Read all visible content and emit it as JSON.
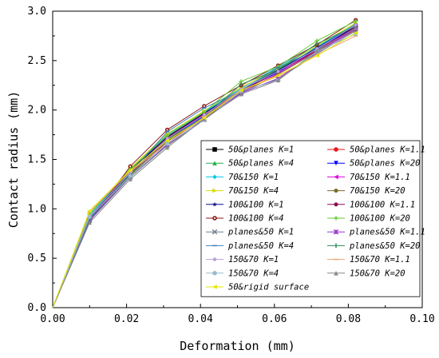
{
  "chart_data": {
    "type": "line",
    "xlabel": "Deformation (mm)",
    "ylabel": "Contact radius (mm)",
    "xlim": [
      0,
      0.1
    ],
    "ylim": [
      0,
      3.0
    ],
    "xticks": [
      "0.00",
      "0.02",
      "0.04",
      "0.06",
      "0.08",
      "0.10"
    ],
    "yticks": [
      "0.0",
      "0.5",
      "1.0",
      "1.5",
      "2.0",
      "2.5",
      "3.0"
    ],
    "grid": false,
    "legend_position": "bottom-right",
    "x": [
      0,
      0.01,
      0.021,
      0.031,
      0.041,
      0.051,
      0.061,
      0.0715,
      0.082
    ],
    "series": [
      {
        "name": "50&planes K=1",
        "color": "#000000",
        "marker": "square",
        "values": [
          0,
          0.92,
          1.38,
          1.72,
          1.96,
          2.2,
          2.4,
          2.62,
          2.85
        ]
      },
      {
        "name": "50&planes K=1.1",
        "color": "#e8161b",
        "marker": "circle",
        "values": [
          0,
          0.9,
          1.36,
          1.7,
          1.95,
          2.19,
          2.39,
          2.61,
          2.83
        ]
      },
      {
        "name": "50&planes K=4",
        "color": "#22b14c",
        "marker": "triangle-up",
        "values": [
          0,
          0.93,
          1.39,
          1.73,
          1.97,
          2.21,
          2.41,
          2.63,
          2.86
        ]
      },
      {
        "name": "50&planes K=20",
        "color": "#0000ff",
        "marker": "triangle-down",
        "values": [
          0,
          0.91,
          1.37,
          1.71,
          1.94,
          2.2,
          2.38,
          2.62,
          2.84
        ]
      },
      {
        "name": "70&150 K=1",
        "color": "#00c8e8",
        "marker": "diamond",
        "values": [
          0,
          0.94,
          1.4,
          1.75,
          1.98,
          2.22,
          2.44,
          2.64,
          2.87
        ]
      },
      {
        "name": "70&150 K=1.1",
        "color": "#e000e0",
        "marker": "triangle-left",
        "values": [
          0,
          0.9,
          1.35,
          1.69,
          1.93,
          2.18,
          2.37,
          2.6,
          2.82
        ]
      },
      {
        "name": "70&150 K=4",
        "color": "#d9d900",
        "marker": "triangle-right",
        "values": [
          0,
          0.95,
          1.41,
          1.76,
          1.99,
          2.23,
          2.42,
          2.65,
          2.88
        ]
      },
      {
        "name": "70&150 K=20",
        "color": "#7b6a2a",
        "marker": "hexagon",
        "values": [
          0,
          0.89,
          1.34,
          1.68,
          1.92,
          2.17,
          2.36,
          2.59,
          2.81
        ]
      },
      {
        "name": "100&100 K=1",
        "color": "#0a0a8a",
        "marker": "star",
        "values": [
          0,
          0.92,
          1.39,
          1.73,
          1.97,
          2.2,
          2.4,
          2.63,
          2.86
        ]
      },
      {
        "name": "100&100 K=1.1",
        "color": "#8b0a50",
        "marker": "pentagon",
        "values": [
          0,
          0.9,
          1.37,
          1.72,
          1.96,
          2.19,
          2.39,
          2.6,
          2.84
        ]
      },
      {
        "name": "100&100 K=4",
        "color": "#8b1a1a",
        "marker": "circle-dot",
        "values": [
          0,
          0.87,
          1.43,
          1.8,
          2.04,
          2.25,
          2.45,
          2.66,
          2.91
        ]
      },
      {
        "name": "100&100 K=20",
        "color": "#66cc33",
        "marker": "plus",
        "values": [
          0,
          0.95,
          1.4,
          1.74,
          1.98,
          2.29,
          2.44,
          2.7,
          2.9
        ]
      },
      {
        "name": "planes&50 K=1",
        "color": "#708090",
        "marker": "x",
        "values": [
          0,
          0.88,
          1.32,
          1.64,
          1.9,
          2.18,
          2.31,
          2.57,
          2.8
        ]
      },
      {
        "name": "planes&50 K=1.1",
        "color": "#9932cc",
        "marker": "asterisk",
        "values": [
          0,
          0.89,
          1.33,
          1.65,
          1.91,
          2.17,
          2.32,
          2.58,
          2.82
        ]
      },
      {
        "name": "planes&50 K=4",
        "color": "#3f7fbf",
        "marker": "dash",
        "values": [
          0,
          0.9,
          1.36,
          1.78,
          2.02,
          2.2,
          2.43,
          2.61,
          2.87
        ]
      },
      {
        "name": "planes&50 K=20",
        "color": "#2e8b57",
        "marker": "vbar",
        "values": [
          0,
          0.91,
          1.35,
          1.7,
          1.93,
          2.26,
          2.41,
          2.67,
          2.85
        ]
      },
      {
        "name": "150&70 K=1",
        "color": "#b8a0e0",
        "marker": "dot",
        "values": [
          0,
          0.93,
          1.37,
          1.71,
          1.95,
          2.21,
          2.39,
          2.62,
          2.86
        ]
      },
      {
        "name": "150&70 K=1.1",
        "color": "#f0a070",
        "marker": "dash",
        "values": [
          0,
          0.97,
          1.38,
          1.66,
          1.93,
          2.2,
          2.34,
          2.56,
          2.75
        ]
      },
      {
        "name": "150&70 K=4",
        "color": "#99bbcc",
        "marker": "circle",
        "values": [
          0,
          0.92,
          1.33,
          1.66,
          1.9,
          2.19,
          2.3,
          2.59,
          2.77
        ]
      },
      {
        "name": "150&70 K=20",
        "color": "#888888",
        "marker": "triangle-up",
        "values": [
          0,
          0.86,
          1.3,
          1.62,
          1.91,
          2.16,
          2.3,
          2.6,
          2.83
        ]
      },
      {
        "name": "50&rigid surface",
        "color": "#e6e600",
        "marker": "triangle-left",
        "values": [
          0,
          0.98,
          1.39,
          1.69,
          1.92,
          2.2,
          2.35,
          2.55,
          2.78
        ]
      }
    ]
  }
}
